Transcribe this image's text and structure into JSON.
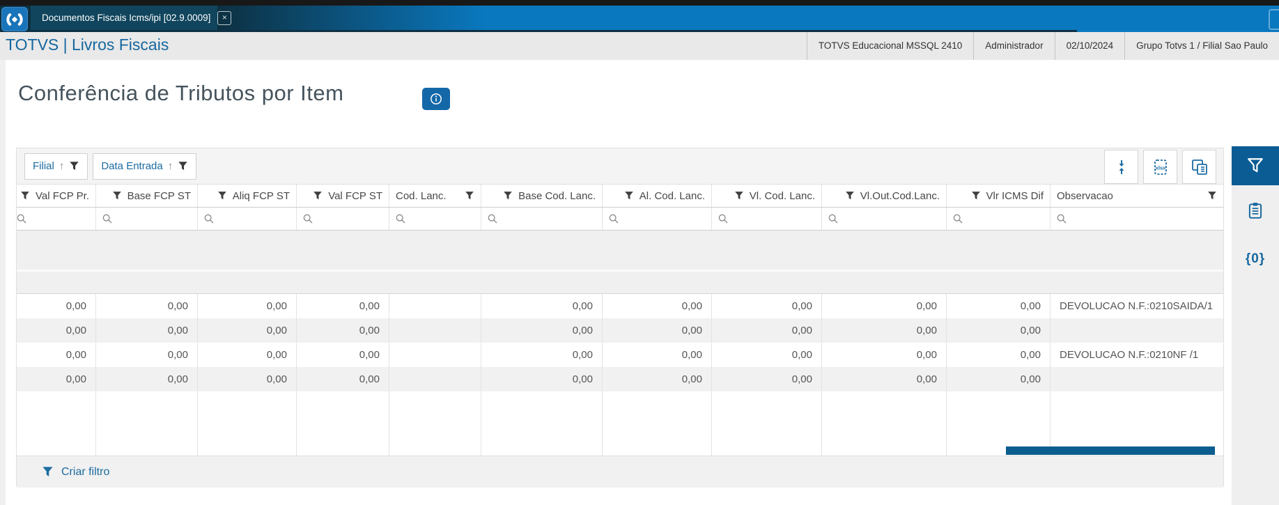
{
  "window": {
    "tab_title": "Documentos Fiscais Icms/ipi [02.9.0009]",
    "close_glyph": "×"
  },
  "app_header": {
    "brand": "TOTVS | Livros Fiscais",
    "environment": "TOTVS Educacional MSSQL 2410",
    "user": "Administrador",
    "date": "02/10/2024",
    "branch": "Grupo Totvs 1 / Filial Sao Paulo"
  },
  "page": {
    "title": "Conferência de Tributos por Item"
  },
  "filters": {
    "chips": [
      {
        "label": "Filial"
      },
      {
        "label": "Data Entrada"
      }
    ],
    "create_filter_label": "Criar filtro"
  },
  "toolbar": {
    "icons": [
      "row-height-icon",
      "export-xlsx-icon",
      "copy-columns-icon"
    ]
  },
  "sidebar": {
    "items": [
      {
        "icon": "funnel-icon",
        "active": true
      },
      {
        "icon": "clipboard-icon",
        "active": false
      },
      {
        "icon": "braces-icon",
        "active": false,
        "label": "{0}"
      }
    ]
  },
  "table": {
    "columns": [
      {
        "label": "Val FCP Pr.",
        "align": "right",
        "funnel": "left",
        "clipped": true
      },
      {
        "label": "Base FCP ST",
        "align": "right",
        "funnel": "left"
      },
      {
        "label": "Aliq FCP ST",
        "align": "right",
        "funnel": "left"
      },
      {
        "label": "Val FCP ST",
        "align": "right",
        "funnel": "left"
      },
      {
        "label": "Cod. Lanc.",
        "align": "left",
        "funnel": "right"
      },
      {
        "label": "Base Cod. Lanc.",
        "align": "right",
        "funnel": "left"
      },
      {
        "label": "Al. Cod. Lanc.",
        "align": "right",
        "funnel": "left"
      },
      {
        "label": "Vl. Cod. Lanc.",
        "align": "right",
        "funnel": "left"
      },
      {
        "label": "Vl.Out.Cod.Lanc.",
        "align": "right",
        "funnel": "left"
      },
      {
        "label": "Vlr ICMS Dif",
        "align": "right",
        "funnel": "left"
      },
      {
        "label": "Observacao",
        "align": "left",
        "funnel": "right"
      }
    ],
    "rows": [
      [
        "0,00",
        "0,00",
        "0,00",
        "0,00",
        "",
        "0,00",
        "0,00",
        "0,00",
        "0,00",
        "0,00",
        "DEVOLUCAO N.F.:0210SAIDA/1"
      ],
      [
        "0,00",
        "0,00",
        "0,00",
        "0,00",
        "",
        "0,00",
        "0,00",
        "0,00",
        "0,00",
        "0,00",
        ""
      ],
      [
        "0,00",
        "0,00",
        "0,00",
        "0,00",
        "",
        "0,00",
        "0,00",
        "0,00",
        "0,00",
        "0,00",
        "DEVOLUCAO N.F.:0210NF /1"
      ],
      [
        "0,00",
        "0,00",
        "0,00",
        "0,00",
        "",
        "0,00",
        "0,00",
        "0,00",
        "0,00",
        "0,00",
        ""
      ]
    ]
  },
  "colors": {
    "top_bar_blue": "#0a78bf",
    "top_bar_dark": "#0d3041",
    "link_blue": "#1c6ba0",
    "sidebar_active": "#0b5c94",
    "scroll_thumb": "#0b5d8f",
    "title_text": "#46535c"
  }
}
